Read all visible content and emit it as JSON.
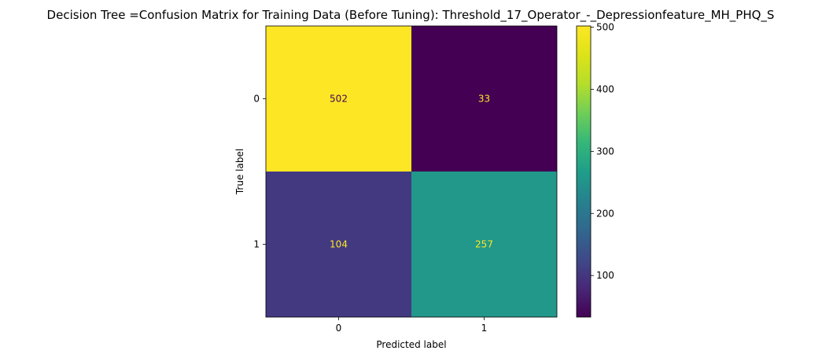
{
  "chart_data": {
    "type": "heatmap",
    "title": "Decision Tree =Confusion Matrix for Training Data (Before Tuning): Threshold_17_Operator_-_Depressionfeature_MH_PHQ_S",
    "xlabel": "Predicted label",
    "ylabel": "True label",
    "x_categories": [
      "0",
      "1"
    ],
    "y_categories": [
      "0",
      "1"
    ],
    "values": [
      [
        502,
        33
      ],
      [
        104,
        257
      ]
    ],
    "colormap": "viridis",
    "colorbar": {
      "range": [
        33,
        502
      ],
      "ticks": [
        100,
        200,
        300,
        400,
        500
      ],
      "tick_labels": [
        "100",
        "200",
        "300",
        "400",
        "500"
      ]
    },
    "text_colors": {
      "on_dark": "#fde725",
      "on_light": "#440154"
    }
  }
}
